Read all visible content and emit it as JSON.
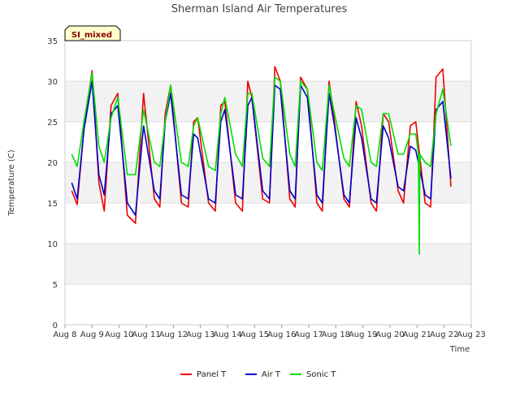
{
  "chart_data": {
    "type": "line",
    "title": "Sherman Island Air Temperatures",
    "xlabel": "Time",
    "ylabel": "Temperature (C)",
    "badge": "SI_mixed",
    "ylim": [
      0,
      35
    ],
    "yticks": [
      0,
      5,
      10,
      15,
      20,
      25,
      30,
      35
    ],
    "xlim": [
      8,
      23
    ],
    "xticks": [
      {
        "v": 8,
        "label": "Aug 8"
      },
      {
        "v": 9,
        "label": "Aug 9"
      },
      {
        "v": 10,
        "label": "Aug 10"
      },
      {
        "v": 11,
        "label": "Aug 11"
      },
      {
        "v": 12,
        "label": "Aug 12"
      },
      {
        "v": 13,
        "label": "Aug 13"
      },
      {
        "v": 14,
        "label": "Aug 14"
      },
      {
        "v": 15,
        "label": "Aug 15"
      },
      {
        "v": 16,
        "label": "Aug 16"
      },
      {
        "v": 17,
        "label": "Aug 17"
      },
      {
        "v": 18,
        "label": "Aug 18"
      },
      {
        "v": 19,
        "label": "Aug 19"
      },
      {
        "v": 20,
        "label": "Aug 20"
      },
      {
        "v": 21,
        "label": "Aug 21"
      },
      {
        "v": 22,
        "label": "Aug 22"
      },
      {
        "v": 23,
        "label": "Aug 23"
      }
    ],
    "legend_position": "bottom",
    "series": [
      {
        "name": "Panel T",
        "color": "#ee0000",
        "x": [
          8.25,
          8.45,
          8.7,
          9.0,
          9.25,
          9.45,
          9.7,
          9.95,
          10.3,
          10.6,
          10.9,
          11.3,
          11.5,
          11.7,
          11.9,
          12.3,
          12.55,
          12.75,
          12.9,
          13.3,
          13.55,
          13.75,
          13.9,
          14.3,
          14.55,
          14.75,
          14.9,
          15.3,
          15.55,
          15.75,
          15.95,
          16.3,
          16.5,
          16.7,
          16.95,
          17.3,
          17.5,
          17.75,
          17.95,
          18.3,
          18.5,
          18.75,
          18.95,
          19.3,
          19.5,
          19.75,
          19.95,
          20.3,
          20.5,
          20.75,
          20.95,
          21.3,
          21.5,
          21.7,
          21.95,
          22.25
        ],
        "y": [
          16.5,
          14.8,
          24.0,
          31.3,
          17.5,
          14.0,
          27.0,
          28.5,
          13.5,
          12.5,
          28.5,
          15.5,
          14.5,
          26.0,
          29.5,
          15.0,
          14.5,
          25.0,
          25.5,
          15.0,
          14.0,
          27.0,
          27.5,
          15.0,
          14.0,
          30.0,
          28.0,
          15.5,
          15.0,
          31.8,
          30.0,
          15.5,
          14.5,
          30.5,
          29.0,
          15.0,
          14.0,
          30.0,
          25.0,
          15.5,
          14.5,
          27.5,
          24.5,
          15.0,
          14.0,
          26.0,
          25.0,
          16.5,
          15.0,
          24.5,
          25.0,
          15.0,
          14.5,
          30.5,
          31.5,
          17.0
        ]
      },
      {
        "name": "Air T",
        "color": "#0000cc",
        "x": [
          8.25,
          8.45,
          8.7,
          9.0,
          9.25,
          9.45,
          9.7,
          9.95,
          10.3,
          10.6,
          10.9,
          11.3,
          11.5,
          11.7,
          11.9,
          12.3,
          12.55,
          12.75,
          12.9,
          13.3,
          13.55,
          13.75,
          13.9,
          14.3,
          14.55,
          14.75,
          14.9,
          15.3,
          15.55,
          15.75,
          15.95,
          16.3,
          16.5,
          16.7,
          16.95,
          17.3,
          17.5,
          17.75,
          17.95,
          18.3,
          18.5,
          18.75,
          18.95,
          19.3,
          19.5,
          19.75,
          19.95,
          20.3,
          20.5,
          20.75,
          20.95,
          21.3,
          21.5,
          21.7,
          21.95,
          22.25
        ],
        "y": [
          17.5,
          15.5,
          24.0,
          30.0,
          18.5,
          16.0,
          26.0,
          27.0,
          15.0,
          13.5,
          24.5,
          16.5,
          15.5,
          25.0,
          28.5,
          16.0,
          15.5,
          23.5,
          23.0,
          15.5,
          15.0,
          25.0,
          26.5,
          16.0,
          15.5,
          27.0,
          28.0,
          16.5,
          15.5,
          29.5,
          29.0,
          16.5,
          15.5,
          29.5,
          28.0,
          16.0,
          15.0,
          28.5,
          24.5,
          16.0,
          15.0,
          25.5,
          23.0,
          15.5,
          15.0,
          24.5,
          23.0,
          17.0,
          16.5,
          22.0,
          21.5,
          16.0,
          15.5,
          26.5,
          27.5,
          18.0
        ]
      },
      {
        "name": "Sonic T",
        "color": "#00dd00",
        "x": [
          8.25,
          8.45,
          8.7,
          9.0,
          9.25,
          9.45,
          9.7,
          9.95,
          10.3,
          10.6,
          10.9,
          11.3,
          11.5,
          11.7,
          11.9,
          12.3,
          12.55,
          12.75,
          12.9,
          13.3,
          13.55,
          13.75,
          13.9,
          14.3,
          14.55,
          14.75,
          14.9,
          15.3,
          15.55,
          15.75,
          15.95,
          16.3,
          16.5,
          16.7,
          16.95,
          17.3,
          17.5,
          17.75,
          17.95,
          18.3,
          18.5,
          18.75,
          18.95,
          19.3,
          19.5,
          19.75,
          19.95,
          20.3,
          20.5,
          20.75,
          20.95,
          21.05,
          21.08,
          21.1,
          21.3,
          21.5,
          21.7,
          21.95,
          22.25
        ],
        "y": [
          21.0,
          19.5,
          25.0,
          31.0,
          22.0,
          20.0,
          25.5,
          28.0,
          18.5,
          18.5,
          26.5,
          20.0,
          19.5,
          25.0,
          29.5,
          20.0,
          19.5,
          24.5,
          25.5,
          19.5,
          19.0,
          26.0,
          28.0,
          21.0,
          19.5,
          28.5,
          28.5,
          20.5,
          19.5,
          30.5,
          30.0,
          21.0,
          19.5,
          30.0,
          29.0,
          20.0,
          19.0,
          29.5,
          26.0,
          20.5,
          19.5,
          27.0,
          26.5,
          20.0,
          19.5,
          26.0,
          26.0,
          21.0,
          21.0,
          23.5,
          23.5,
          21.0,
          8.7,
          21.0,
          20.0,
          19.5,
          26.0,
          29.0,
          22.0
        ]
      }
    ]
  }
}
